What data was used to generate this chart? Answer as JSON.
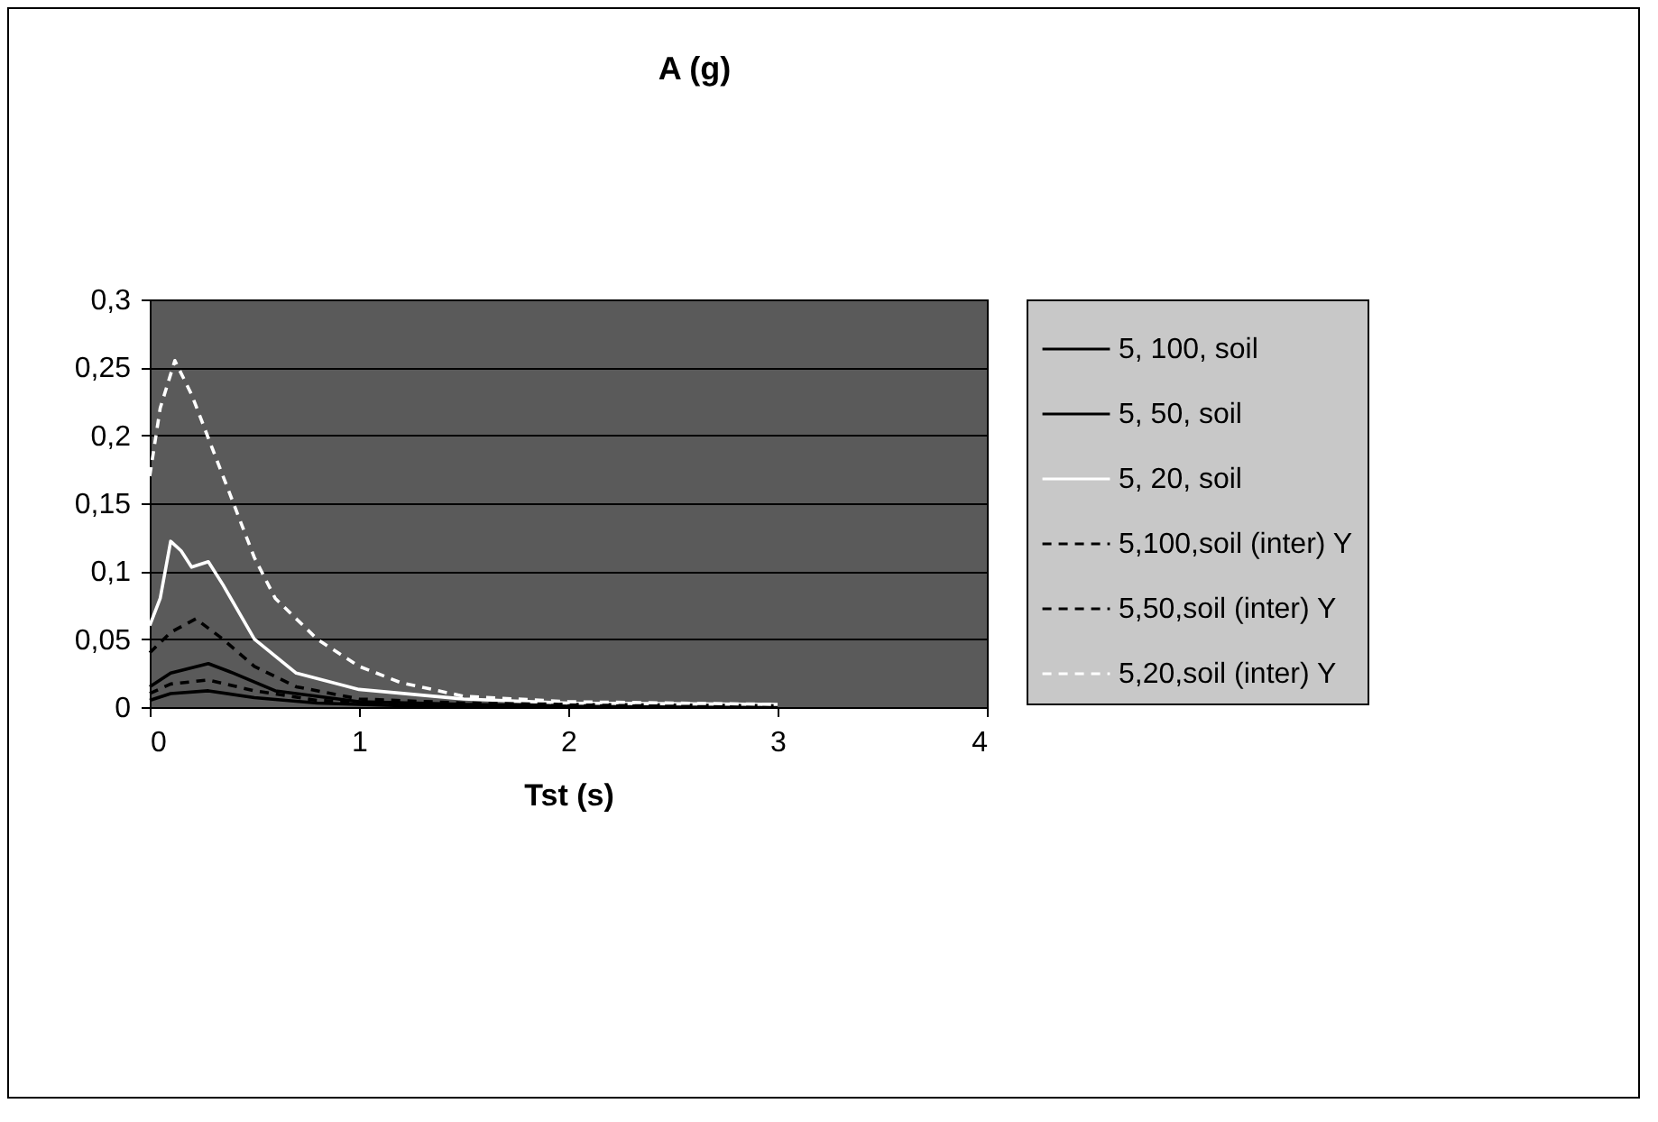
{
  "chart_data": {
    "type": "line",
    "title": "A (g)",
    "xlabel": "Tst (s)",
    "xlim": [
      0,
      4
    ],
    "xticks": [
      0,
      1,
      2,
      3,
      4
    ],
    "ylim": [
      0,
      0.3
    ],
    "yticks": [
      0,
      {
        "value": 0.05,
        "label": "0,05"
      },
      {
        "value": 0.1,
        "label": "0,1"
      },
      {
        "value": 0.15,
        "label": "0,15"
      },
      {
        "value": 0.2,
        "label": "0,2"
      },
      {
        "value": 0.25,
        "label": "0,25"
      },
      {
        "value": 0.3,
        "label": "0,3"
      }
    ],
    "grid": "y",
    "legend": "right",
    "marker": "none",
    "series": [
      {
        "name": "5, 100, soil",
        "color": "#000000",
        "line_style": "solid",
        "x": [
          0,
          0.1,
          0.28,
          0.5,
          0.8,
          1.2,
          2,
          3
        ],
        "values": [
          0.005,
          0.01,
          0.012,
          0.007,
          0.003,
          0.001,
          0.001,
          0
        ]
      },
      {
        "name": "5, 50, soil",
        "color": "#000000",
        "line_style": "solid",
        "x": [
          0,
          0.1,
          0.28,
          0.4,
          0.6,
          1,
          1.5,
          2,
          3
        ],
        "values": [
          0.015,
          0.025,
          0.032,
          0.025,
          0.012,
          0.004,
          0.002,
          0.001,
          0.001
        ]
      },
      {
        "name": "5, 20, soil",
        "color": "#ffffff",
        "line_style": "solid",
        "x": [
          0,
          0.05,
          0.1,
          0.15,
          0.2,
          0.28,
          0.35,
          0.5,
          0.7,
          1,
          1.5,
          2,
          3
        ],
        "values": [
          0.06,
          0.08,
          0.122,
          0.115,
          0.103,
          0.107,
          0.09,
          0.05,
          0.025,
          0.013,
          0.006,
          0.003,
          0.002
        ]
      },
      {
        "name": "5,100,soil (inter) Y",
        "color": "#000000",
        "line_style": "dashed",
        "x": [
          0,
          0.1,
          0.28,
          0.5,
          0.8,
          1.2,
          2,
          3
        ],
        "values": [
          0.01,
          0.017,
          0.02,
          0.012,
          0.005,
          0.002,
          0.001,
          0.001
        ]
      },
      {
        "name": "5,50,soil (inter) Y",
        "color": "#000000",
        "line_style": "dashed",
        "x": [
          0,
          0.1,
          0.22,
          0.35,
          0.5,
          0.7,
          1,
          1.5,
          2,
          3
        ],
        "values": [
          0.04,
          0.055,
          0.065,
          0.05,
          0.03,
          0.015,
          0.006,
          0.003,
          0.002,
          0.001
        ]
      },
      {
        "name": "5,20,soil (inter) Y",
        "color": "#ffffff",
        "line_style": "dashed",
        "x": [
          0,
          0.05,
          0.12,
          0.2,
          0.3,
          0.4,
          0.5,
          0.6,
          0.8,
          1,
          1.2,
          1.5,
          2,
          3
        ],
        "values": [
          0.17,
          0.22,
          0.255,
          0.23,
          0.19,
          0.15,
          0.11,
          0.08,
          0.05,
          0.03,
          0.018,
          0.008,
          0.004,
          0.002
        ]
      }
    ]
  }
}
